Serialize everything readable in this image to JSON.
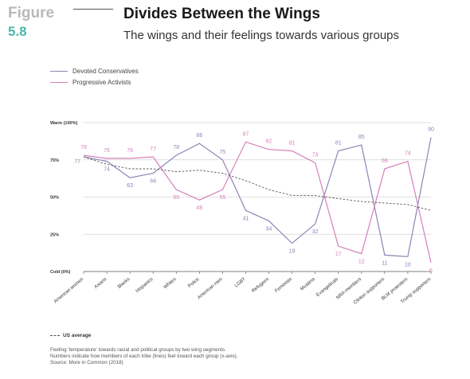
{
  "figure": {
    "word": "Figure",
    "number": "5.8"
  },
  "title": "Divides Between the Wings",
  "subtitle": "The wings and their feelings towards various groups",
  "footer": {
    "avg_label": "US average",
    "note1": "Feeling 'temperature' towards racial and political groups by two wing segments.",
    "note2": "Numbers indicate how members of each tribe (lines) feel toward each group (x-axis).",
    "source": "Source: More in Common (2018)"
  },
  "chart_data": {
    "type": "line",
    "categories": [
      "American women",
      "Asians",
      "Blacks",
      "Hispanics",
      "Whites",
      "Police",
      "American men",
      "LGBT",
      "Refugees",
      "Feminists",
      "Muslims",
      "Evangelicals",
      "NRA members",
      "Clinton supporters",
      "BLM protesters",
      "Trump supporters"
    ],
    "y_tick_labels": [
      "Cold (0%)",
      "25%",
      "50%",
      "75%",
      "Warm (100%)"
    ],
    "y_ticks": [
      0,
      25,
      50,
      75,
      100
    ],
    "ylim": [
      0,
      100
    ],
    "grid": true,
    "legend": "top-left",
    "series": [
      {
        "name": "Devoted Conservatives",
        "color": "#8a86b6",
        "values": [
          77,
          74,
          63,
          66,
          78,
          86,
          75,
          41,
          34,
          19,
          32,
          81,
          85,
          11,
          10,
          90
        ]
      },
      {
        "name": "Progressive Activists",
        "color": "#d67fba",
        "values": [
          78,
          76,
          76,
          77,
          55,
          48,
          55,
          87,
          82,
          81,
          73,
          17,
          12,
          69,
          74,
          6
        ]
      },
      {
        "name": "US average",
        "color": "#555555",
        "dashed": true,
        "values": [
          77,
          72,
          69,
          69,
          67,
          68,
          66,
          61,
          55,
          51,
          51,
          49,
          47,
          46,
          45,
          41
        ]
      }
    ]
  }
}
